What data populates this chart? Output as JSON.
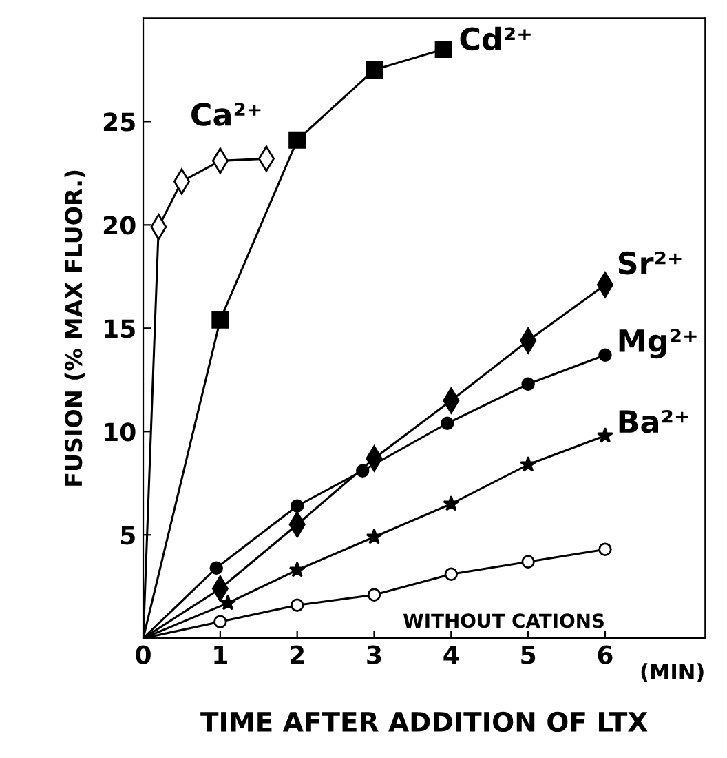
{
  "chart_data": {
    "type": "line",
    "xlabel": "TIME AFTER ADDITION OF LTX",
    "ylabel": "FUSION (% MAX FLUOR.)",
    "xlim": [
      0,
      7.3
    ],
    "ylim": [
      0,
      30
    ],
    "xticks": [
      0,
      1,
      2,
      3,
      4,
      5,
      6
    ],
    "yticks": [
      5,
      10,
      15,
      20,
      25
    ],
    "annotations": [
      "(MIN)"
    ],
    "grid": false,
    "legend": false,
    "series": [
      {
        "name": "Ca²⁺",
        "color": "#000000",
        "marker": "diamond",
        "x": [
          0,
          0.2,
          0.5,
          1.0,
          1.6
        ],
        "values": [
          0,
          19.9,
          22.1,
          23.1,
          23.2
        ]
      },
      {
        "name": "Cd²⁺",
        "color": "#000000",
        "marker": "square",
        "x": [
          0,
          1,
          2,
          3,
          3.9
        ],
        "values": [
          0,
          15.4,
          24.1,
          27.5,
          28.5
        ]
      },
      {
        "name": "Sr²⁺",
        "color": "#000000",
        "marker": "diamond",
        "x": [
          0,
          1,
          2,
          3,
          4,
          5,
          6
        ],
        "values": [
          0,
          2.4,
          5.5,
          8.7,
          11.5,
          14.4,
          17.1
        ]
      },
      {
        "name": "Mg²⁺",
        "color": "#000000",
        "marker": "circle",
        "x": [
          0,
          0.95,
          2,
          2.85,
          3.95,
          5,
          6
        ],
        "values": [
          0,
          3.4,
          6.4,
          8.1,
          10.4,
          12.3,
          13.7
        ]
      },
      {
        "name": "Ba²⁺",
        "color": "#000000",
        "marker": "star",
        "x": [
          0,
          1.1,
          2,
          3,
          4,
          5,
          6
        ],
        "values": [
          0,
          1.7,
          3.3,
          4.9,
          6.5,
          8.4,
          9.8
        ]
      },
      {
        "name": "WITHOUT CATIONS",
        "color": "#000000",
        "marker": "circle",
        "x": [
          0,
          1,
          2,
          3,
          4,
          5,
          6
        ],
        "values": [
          0,
          0.8,
          1.6,
          2.1,
          3.1,
          3.7,
          4.3
        ]
      }
    ]
  }
}
